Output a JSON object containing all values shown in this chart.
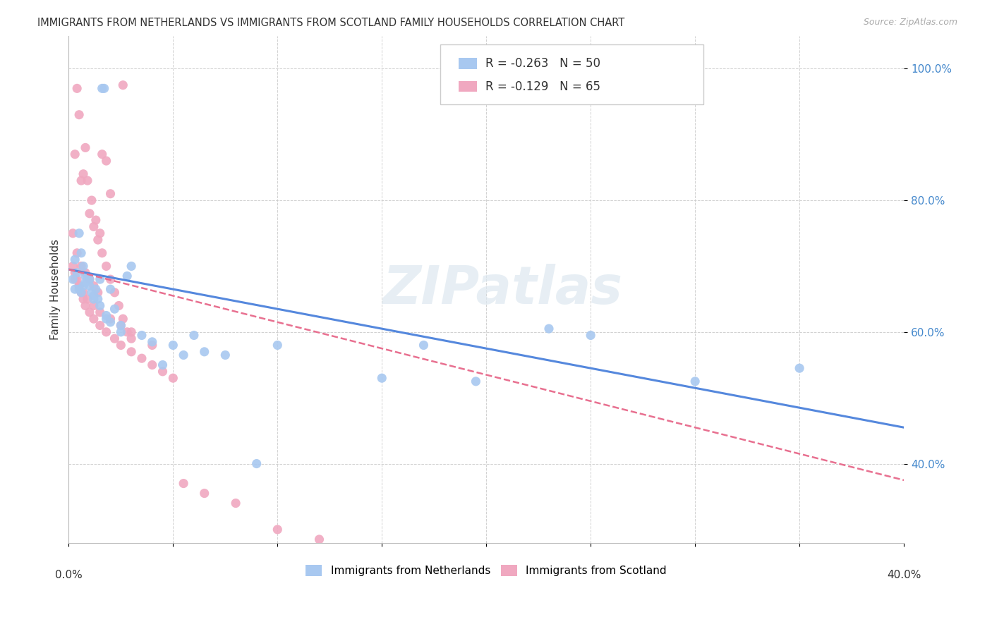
{
  "title": "IMMIGRANTS FROM NETHERLANDS VS IMMIGRANTS FROM SCOTLAND FAMILY HOUSEHOLDS CORRELATION CHART",
  "source": "Source: ZipAtlas.com",
  "ylabel": "Family Households",
  "y_ticks": [
    0.4,
    0.6,
    0.8,
    1.0
  ],
  "y_tick_labels": [
    "40.0%",
    "60.0%",
    "80.0%",
    "100.0%"
  ],
  "x_range": [
    0.0,
    0.4
  ],
  "y_range": [
    0.28,
    1.05
  ],
  "color_netherlands": "#A8C8F0",
  "color_scotland": "#F0A8C0",
  "color_netherlands_line": "#5588DD",
  "color_scotland_line": "#E87090",
  "watermark": "ZIPatlas",
  "nl_x": [
    0.016,
    0.017,
    0.005,
    0.006,
    0.007,
    0.008,
    0.009,
    0.01,
    0.011,
    0.012,
    0.003,
    0.004,
    0.013,
    0.014,
    0.015,
    0.018,
    0.02,
    0.022,
    0.025,
    0.03,
    0.035,
    0.028,
    0.04,
    0.045,
    0.05,
    0.055,
    0.06,
    0.002,
    0.003,
    0.005,
    0.007,
    0.01,
    0.015,
    0.02,
    0.065,
    0.075,
    0.09,
    0.1,
    0.15,
    0.17,
    0.195,
    0.23,
    0.25,
    0.3,
    0.35,
    0.006,
    0.008,
    0.012,
    0.018,
    0.025
  ],
  "nl_y": [
    0.97,
    0.97,
    0.75,
    0.72,
    0.7,
    0.685,
    0.68,
    0.67,
    0.66,
    0.655,
    0.71,
    0.69,
    0.665,
    0.65,
    0.64,
    0.625,
    0.615,
    0.635,
    0.6,
    0.7,
    0.595,
    0.685,
    0.585,
    0.55,
    0.58,
    0.565,
    0.595,
    0.68,
    0.665,
    0.665,
    0.67,
    0.68,
    0.68,
    0.665,
    0.57,
    0.565,
    0.4,
    0.58,
    0.53,
    0.58,
    0.525,
    0.605,
    0.595,
    0.525,
    0.545,
    0.66,
    0.675,
    0.65,
    0.62,
    0.61
  ],
  "sc_x": [
    0.026,
    0.004,
    0.008,
    0.005,
    0.007,
    0.009,
    0.011,
    0.013,
    0.015,
    0.003,
    0.006,
    0.01,
    0.012,
    0.014,
    0.016,
    0.018,
    0.02,
    0.002,
    0.004,
    0.006,
    0.008,
    0.01,
    0.012,
    0.014,
    0.016,
    0.018,
    0.02,
    0.022,
    0.024,
    0.026,
    0.028,
    0.03,
    0.002,
    0.003,
    0.004,
    0.005,
    0.006,
    0.007,
    0.008,
    0.01,
    0.012,
    0.015,
    0.018,
    0.022,
    0.025,
    0.03,
    0.035,
    0.04,
    0.045,
    0.05,
    0.055,
    0.065,
    0.08,
    0.1,
    0.12,
    0.003,
    0.005,
    0.007,
    0.009,
    0.012,
    0.015,
    0.02,
    0.025,
    0.03,
    0.04
  ],
  "sc_y": [
    0.975,
    0.97,
    0.88,
    0.93,
    0.84,
    0.83,
    0.8,
    0.77,
    0.75,
    0.87,
    0.83,
    0.78,
    0.76,
    0.74,
    0.87,
    0.86,
    0.81,
    0.75,
    0.72,
    0.7,
    0.69,
    0.68,
    0.67,
    0.66,
    0.72,
    0.7,
    0.68,
    0.66,
    0.64,
    0.62,
    0.6,
    0.59,
    0.7,
    0.69,
    0.68,
    0.67,
    0.66,
    0.65,
    0.64,
    0.63,
    0.62,
    0.61,
    0.6,
    0.59,
    0.58,
    0.57,
    0.56,
    0.55,
    0.54,
    0.53,
    0.37,
    0.355,
    0.34,
    0.3,
    0.285,
    0.68,
    0.67,
    0.66,
    0.65,
    0.64,
    0.63,
    0.62,
    0.61,
    0.6,
    0.58
  ],
  "nl_line_x": [
    0.0,
    0.4
  ],
  "nl_line_y": [
    0.695,
    0.455
  ],
  "sc_line_x": [
    0.0,
    0.4
  ],
  "sc_line_y": [
    0.695,
    0.375
  ]
}
